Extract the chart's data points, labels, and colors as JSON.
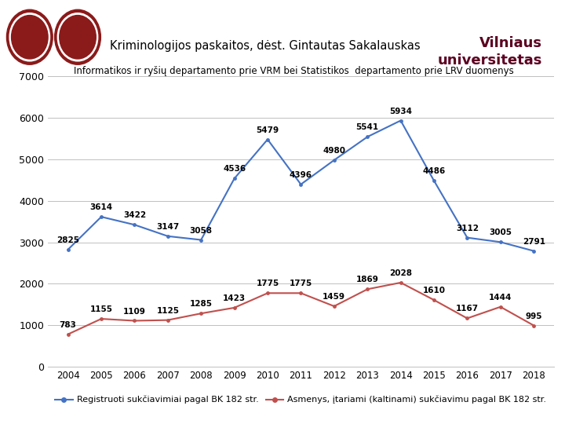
{
  "years": [
    2004,
    2005,
    2006,
    2007,
    2008,
    2009,
    2010,
    2011,
    2012,
    2013,
    2014,
    2015,
    2016,
    2017,
    2018
  ],
  "blue_values": [
    2825,
    3614,
    3422,
    3147,
    3058,
    4536,
    5479,
    4396,
    4980,
    5541,
    5934,
    4486,
    3112,
    3005,
    2791
  ],
  "red_values": [
    783,
    1155,
    1109,
    1125,
    1285,
    1423,
    1775,
    1775,
    1459,
    1869,
    2028,
    1610,
    1167,
    1444,
    995
  ],
  "blue_color": "#4472C4",
  "red_color": "#C0504D",
  "title": "Kriminologijos paskaitos, dėst. Gintautas Sakalauskas",
  "subtitle": "Informatikos ir ryšių departamento prie VRM bei Statistikos  departamento prie LRV duomenys",
  "vilnius_line1": "Vilniaus",
  "vilnius_line2": "universitetas",
  "legend1": "Registruoti sukčiavimiai pagal BK 182 str.",
  "legend2": "Asmenys, įtariami (kaltinami) sukčiavimu pagal BK 182 str.",
  "ylim": [
    0,
    7000
  ],
  "yticks": [
    0,
    1000,
    2000,
    3000,
    4000,
    5000,
    6000,
    7000
  ],
  "background_color": "#FFFFFF",
  "grid_color": "#C0C0C0",
  "title_fontsize": 10.5,
  "subtitle_fontsize": 8.5,
  "data_label_fontsize": 7.5,
  "legend_fontsize": 8,
  "vilnius_color": "#5B0020",
  "vilnius_fontsize": 13,
  "xtick_fontsize": 8.5,
  "ytick_fontsize": 9
}
